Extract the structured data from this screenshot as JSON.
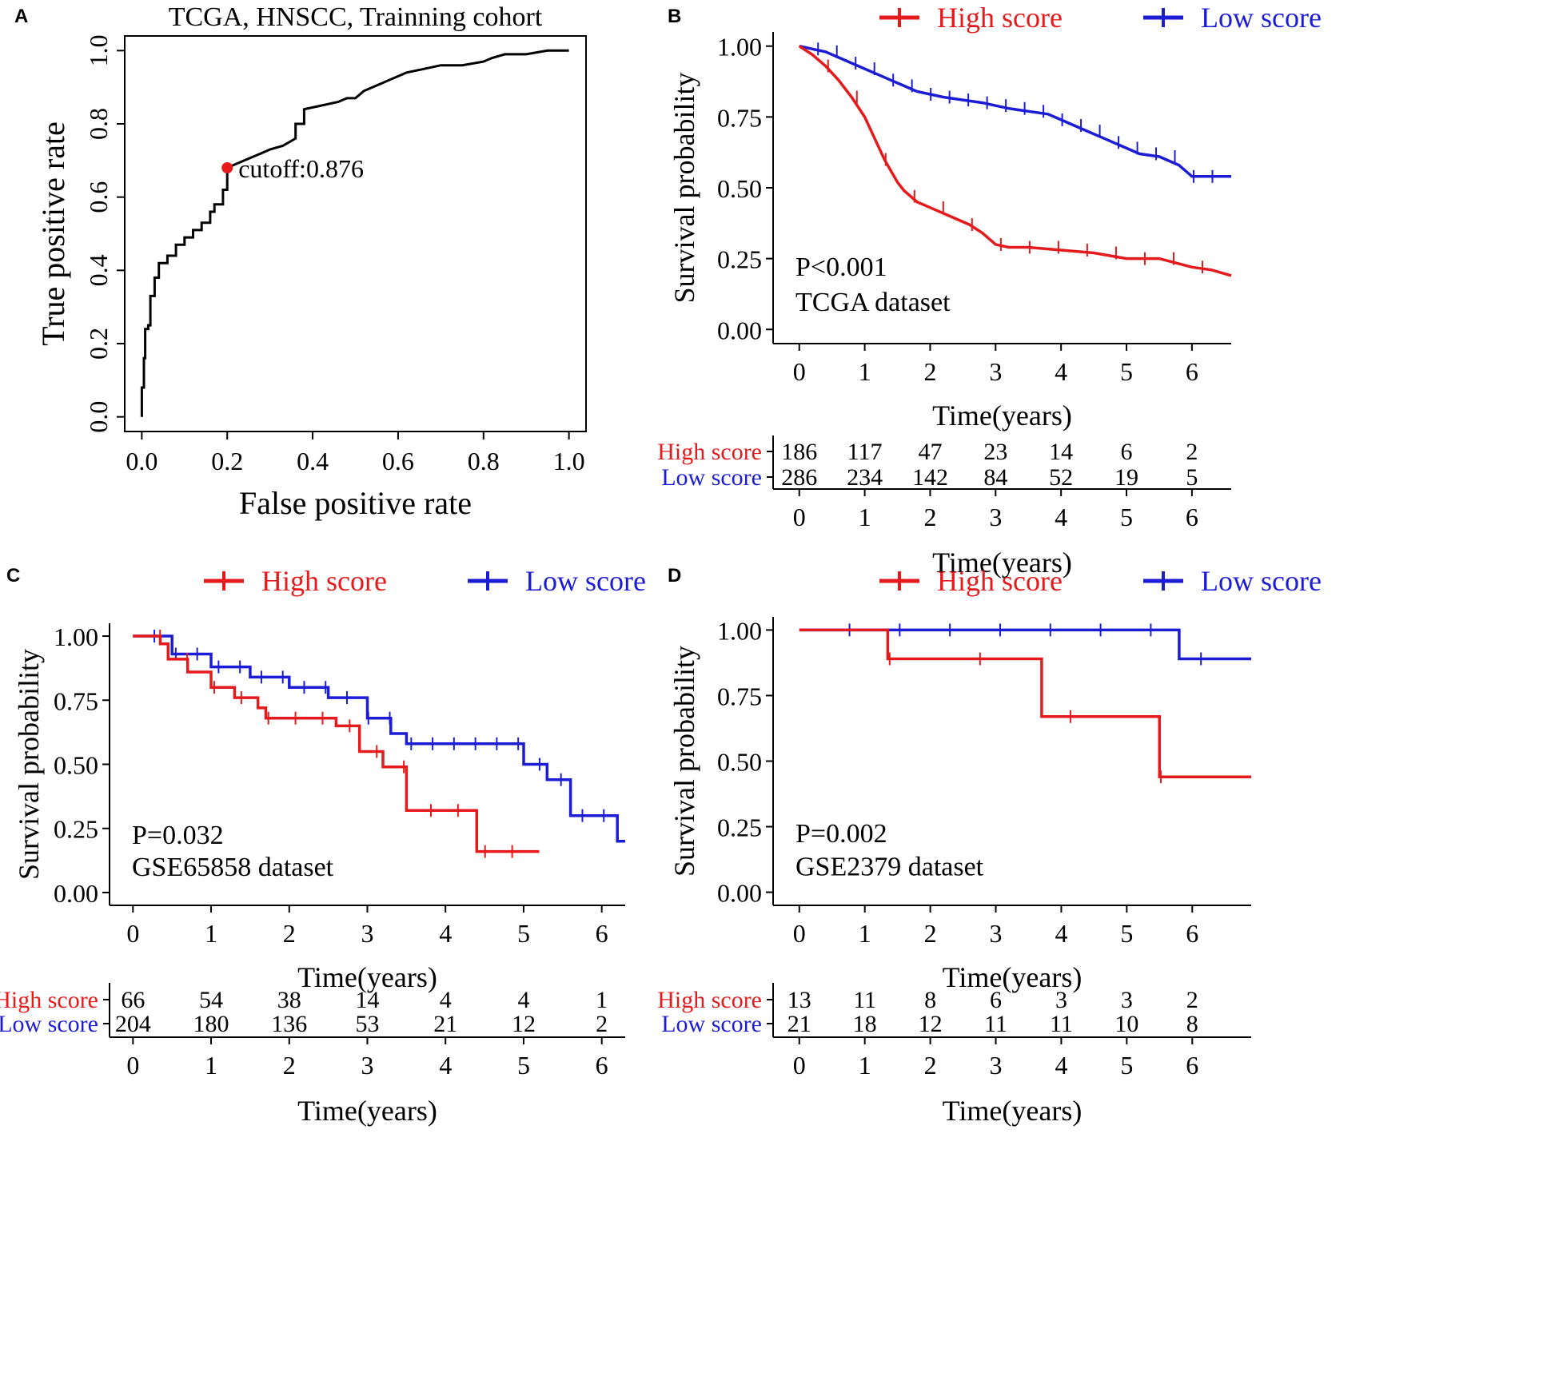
{
  "colors": {
    "high": "#e41a1c",
    "low": "#1c1cd6",
    "axis": "#000000",
    "roc": "#000000",
    "cutoff": "#e41a1c"
  },
  "chart_data": [
    {
      "panel": "A",
      "type": "line",
      "title": "TCGA, HNSCC, Trainning cohort",
      "xlabel": "False positive rate",
      "ylabel": "True positive rate",
      "xlim": [
        0,
        1
      ],
      "ylim": [
        0,
        1
      ],
      "xticks": [
        "0.0",
        "0.2",
        "0.4",
        "0.6",
        "0.8",
        "1.0"
      ],
      "yticks": [
        "0.0",
        "0.2",
        "0.4",
        "0.6",
        "0.8",
        "1.0"
      ],
      "cutoff": {
        "label": "cutoff:0.876",
        "x": 0.2,
        "y": 0.68
      },
      "series": [
        {
          "name": "ROC",
          "x": [
            0,
            0,
            0.005,
            0.005,
            0.008,
            0.008,
            0.015,
            0.015,
            0.02,
            0.02,
            0.03,
            0.03,
            0.04,
            0.04,
            0.06,
            0.06,
            0.08,
            0.08,
            0.1,
            0.1,
            0.12,
            0.12,
            0.14,
            0.14,
            0.16,
            0.16,
            0.17,
            0.17,
            0.19,
            0.19,
            0.2,
            0.2,
            0.22,
            0.24,
            0.26,
            0.28,
            0.3,
            0.33,
            0.36,
            0.36,
            0.38,
            0.38,
            0.42,
            0.46,
            0.48,
            0.5,
            0.52,
            0.56,
            0.58,
            0.62,
            0.66,
            0.7,
            0.75,
            0.8,
            0.82,
            0.85,
            0.9,
            0.95,
            1.0
          ],
          "y": [
            0,
            0.08,
            0.08,
            0.16,
            0.16,
            0.24,
            0.24,
            0.25,
            0.25,
            0.33,
            0.33,
            0.38,
            0.38,
            0.42,
            0.42,
            0.44,
            0.44,
            0.47,
            0.47,
            0.49,
            0.49,
            0.51,
            0.51,
            0.53,
            0.53,
            0.56,
            0.56,
            0.58,
            0.58,
            0.62,
            0.62,
            0.68,
            0.69,
            0.7,
            0.71,
            0.72,
            0.73,
            0.74,
            0.76,
            0.8,
            0.8,
            0.84,
            0.85,
            0.86,
            0.87,
            0.87,
            0.89,
            0.91,
            0.92,
            0.94,
            0.95,
            0.96,
            0.96,
            0.97,
            0.98,
            0.99,
            0.99,
            1.0,
            1.0
          ]
        }
      ]
    },
    {
      "panel": "B",
      "type": "line",
      "xlabel": "Time(years)",
      "ylabel": "Survival probability",
      "xlim": [
        -0.4,
        6.6
      ],
      "ylim": [
        0,
        1
      ],
      "xticks": [
        "0",
        "1",
        "2",
        "3",
        "4",
        "5",
        "6"
      ],
      "yticks": [
        "0.00",
        "0.25",
        "0.50",
        "0.75",
        "1.00"
      ],
      "legend": [
        "High score",
        "Low score"
      ],
      "pvalue": "P<0.001",
      "dataset": "TCGA dataset",
      "series": [
        {
          "name": "High score",
          "x": [
            0,
            0.2,
            0.4,
            0.6,
            0.8,
            1.0,
            1.1,
            1.2,
            1.3,
            1.4,
            1.5,
            1.6,
            1.7,
            1.8,
            2.0,
            2.2,
            2.4,
            2.6,
            2.8,
            3.0,
            3.2,
            3.5,
            4.0,
            4.5,
            5.0,
            5.5,
            6.0,
            6.3,
            6.6
          ],
          "y": [
            1.0,
            0.97,
            0.93,
            0.88,
            0.82,
            0.75,
            0.7,
            0.65,
            0.6,
            0.56,
            0.52,
            0.49,
            0.47,
            0.45,
            0.43,
            0.41,
            0.39,
            0.37,
            0.34,
            0.3,
            0.29,
            0.29,
            0.28,
            0.27,
            0.25,
            0.25,
            0.22,
            0.21,
            0.19
          ]
        },
        {
          "name": "Low score",
          "x": [
            0,
            0.2,
            0.4,
            0.6,
            0.8,
            1.0,
            1.2,
            1.4,
            1.6,
            1.8,
            2.0,
            2.2,
            2.5,
            2.8,
            3.0,
            3.2,
            3.5,
            3.8,
            4.0,
            4.2,
            4.4,
            4.6,
            4.8,
            5.0,
            5.2,
            5.5,
            5.8,
            6.0,
            6.6
          ],
          "y": [
            1.0,
            0.99,
            0.98,
            0.96,
            0.94,
            0.92,
            0.9,
            0.88,
            0.86,
            0.84,
            0.83,
            0.82,
            0.81,
            0.8,
            0.79,
            0.78,
            0.77,
            0.76,
            0.74,
            0.72,
            0.7,
            0.68,
            0.66,
            0.64,
            0.62,
            0.61,
            0.58,
            0.54,
            0.54
          ]
        }
      ],
      "risk_table": {
        "xlabel": "Time(years)",
        "xticks": [
          "0",
          "1",
          "2",
          "3",
          "4",
          "5",
          "6"
        ],
        "rows": [
          {
            "label": "High score",
            "counts": [
              "186",
              "117",
              "47",
              "23",
              "14",
              "6",
              "2"
            ]
          },
          {
            "label": "Low  score",
            "counts": [
              "286",
              "234",
              "142",
              "84",
              "52",
              "19",
              "5"
            ]
          }
        ]
      }
    },
    {
      "panel": "C",
      "type": "line",
      "xlabel": "Time(years)",
      "ylabel": "Survival probability",
      "xlim": [
        -0.3,
        6.3
      ],
      "ylim": [
        0,
        1
      ],
      "xticks": [
        "0",
        "1",
        "2",
        "3",
        "4",
        "5",
        "6"
      ],
      "yticks": [
        "0.00",
        "0.25",
        "0.50",
        "0.75",
        "1.00"
      ],
      "legend": [
        "High score",
        "Low score"
      ],
      "pvalue": "P=0.032",
      "dataset": "GSE65858 dataset",
      "series": [
        {
          "name": "High score",
          "x": [
            0,
            0.35,
            0.45,
            0.7,
            1.0,
            1.3,
            1.6,
            1.7,
            2.3,
            2.6,
            2.9,
            3.2,
            3.5,
            4.4,
            5.2
          ],
          "y": [
            1.0,
            0.97,
            0.91,
            0.86,
            0.8,
            0.76,
            0.72,
            0.68,
            0.68,
            0.65,
            0.55,
            0.49,
            0.32,
            0.16,
            0.16
          ]
        },
        {
          "name": "Low score",
          "x": [
            0,
            0.5,
            1.0,
            1.5,
            2.0,
            2.5,
            3.0,
            3.3,
            3.5,
            4.0,
            4.7,
            5.0,
            5.3,
            5.6,
            6.2,
            6.3
          ],
          "y": [
            1.0,
            0.93,
            0.88,
            0.84,
            0.8,
            0.76,
            0.68,
            0.62,
            0.58,
            0.58,
            0.58,
            0.5,
            0.44,
            0.3,
            0.2,
            0.2
          ]
        }
      ],
      "risk_table": {
        "xlabel": "Time(years)",
        "xticks": [
          "0",
          "1",
          "2",
          "3",
          "4",
          "5",
          "6"
        ],
        "rows": [
          {
            "label": "High score",
            "counts": [
              "66",
              "54",
              "38",
              "14",
              "4",
              "4",
              "1"
            ]
          },
          {
            "label": "Low  score",
            "counts": [
              "204",
              "180",
              "136",
              "53",
              "21",
              "12",
              "2"
            ]
          }
        ]
      }
    },
    {
      "panel": "D",
      "type": "line",
      "xlabel": "Time(years)",
      "ylabel": "Survival probability",
      "xlim": [
        -0.4,
        6.9
      ],
      "ylim": [
        0,
        1
      ],
      "xticks": [
        "0",
        "1",
        "2",
        "3",
        "4",
        "5",
        "6"
      ],
      "yticks": [
        "0.00",
        "0.25",
        "0.50",
        "0.75",
        "1.00"
      ],
      "legend": [
        "High score",
        "Low score"
      ],
      "pvalue": "P=0.002",
      "dataset": "GSE2379 dataset",
      "series": [
        {
          "name": "High score",
          "x": [
            0,
            1.35,
            3.7,
            5.5,
            6.9
          ],
          "y": [
            1.0,
            0.89,
            0.67,
            0.44,
            0.44
          ]
        },
        {
          "name": "Low score",
          "x": [
            0,
            5.8,
            6.9
          ],
          "y": [
            1.0,
            0.89,
            0.89
          ]
        }
      ],
      "risk_table": {
        "xlabel": "Time(years)",
        "xticks": [
          "0",
          "1",
          "2",
          "3",
          "4",
          "5",
          "6"
        ],
        "rows": [
          {
            "label": "High score",
            "counts": [
              "13",
              "11",
              "8",
              "6",
              "3",
              "3",
              "2"
            ]
          },
          {
            "label": "Low  score",
            "counts": [
              "21",
              "18",
              "12",
              "11",
              "11",
              "10",
              "8"
            ]
          }
        ]
      }
    }
  ]
}
